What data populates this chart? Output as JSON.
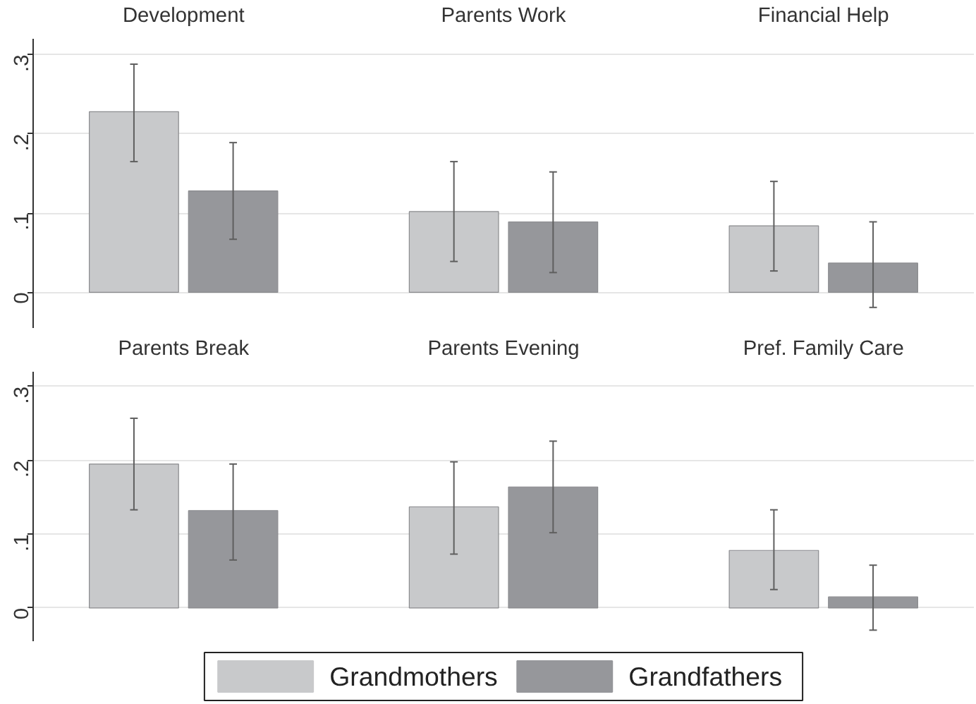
{
  "chart_data": [
    {
      "type": "bar",
      "categories": [
        "Development",
        "Parents Work",
        "Financial Help"
      ],
      "ylim": [
        -0.045,
        0.32
      ],
      "yticks": [
        {
          "value": 0,
          "label": "0"
        },
        {
          "value": 0.1,
          "label": ".1"
        },
        {
          "value": 0.2,
          "label": ".2"
        },
        {
          "value": 0.3,
          "label": ".3"
        }
      ],
      "grid": "y",
      "series": [
        {
          "color": "#c8c9cb",
          "values": [
            0.228,
            0.102,
            0.084
          ],
          "errors": [
            [
              0.165,
              0.288
            ],
            [
              0.039,
              0.165
            ],
            [
              0.027,
              0.14
            ]
          ]
        },
        {
          "color": "#96979b",
          "values": [
            0.128,
            0.089,
            0.037
          ],
          "errors": [
            [
              0.067,
              0.189
            ],
            [
              0.025,
              0.152
            ],
            [
              -0.019,
              0.089
            ]
          ]
        }
      ]
    },
    {
      "type": "bar",
      "categories": [
        "Parents Break",
        "Parents Evening",
        "Pref. Family Care"
      ],
      "ylim": [
        -0.045,
        0.32
      ],
      "yticks": [
        {
          "value": 0,
          "label": "0"
        },
        {
          "value": 0.1,
          "label": ".1"
        },
        {
          "value": 0.2,
          "label": ".2"
        },
        {
          "value": 0.3,
          "label": ".3"
        }
      ],
      "grid": "y",
      "legend": "bottom",
      "series": [
        {
          "name": "Grandmothers",
          "color": "#c8c9cb",
          "values": [
            0.195,
            0.137,
            0.078
          ],
          "errors": [
            [
              0.133,
              0.257
            ],
            [
              0.073,
              0.198
            ],
            [
              0.025,
              0.133
            ]
          ]
        },
        {
          "name": "Grandfathers",
          "color": "#96979b",
          "values": [
            0.132,
            0.164,
            0.015
          ],
          "errors": [
            [
              0.065,
              0.195
            ],
            [
              0.102,
              0.226
            ],
            [
              -0.03,
              0.058
            ]
          ]
        }
      ]
    }
  ]
}
